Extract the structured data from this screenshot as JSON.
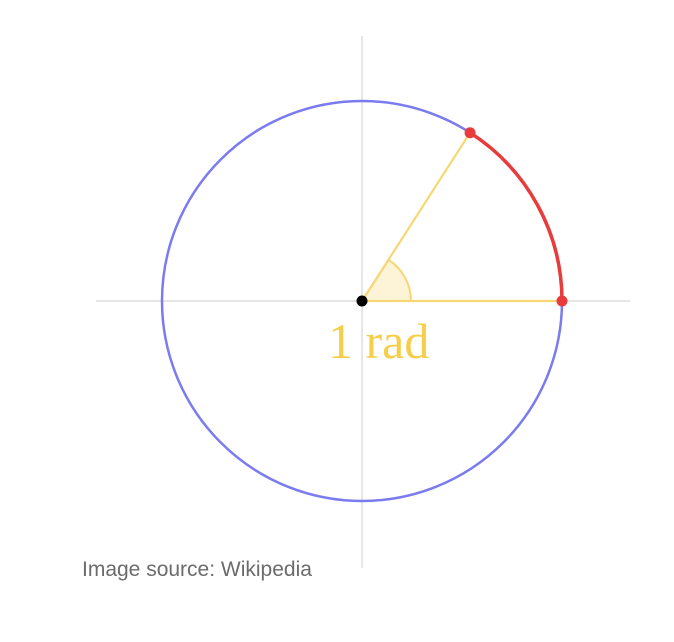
{
  "diagram": {
    "angle_label": "1 rad",
    "angle_radians": 1,
    "colors": {
      "axes": "#e6e6e6",
      "circle": "#7b7bf0",
      "radius": "#f7d774",
      "arc": "#e83b3b",
      "arc_points": "#e83b3b",
      "center_point": "#000000",
      "angle_fill": "#fdf3d6",
      "label": "#f5cf4a"
    }
  },
  "caption": {
    "text": "Image source: Wikipedia"
  }
}
